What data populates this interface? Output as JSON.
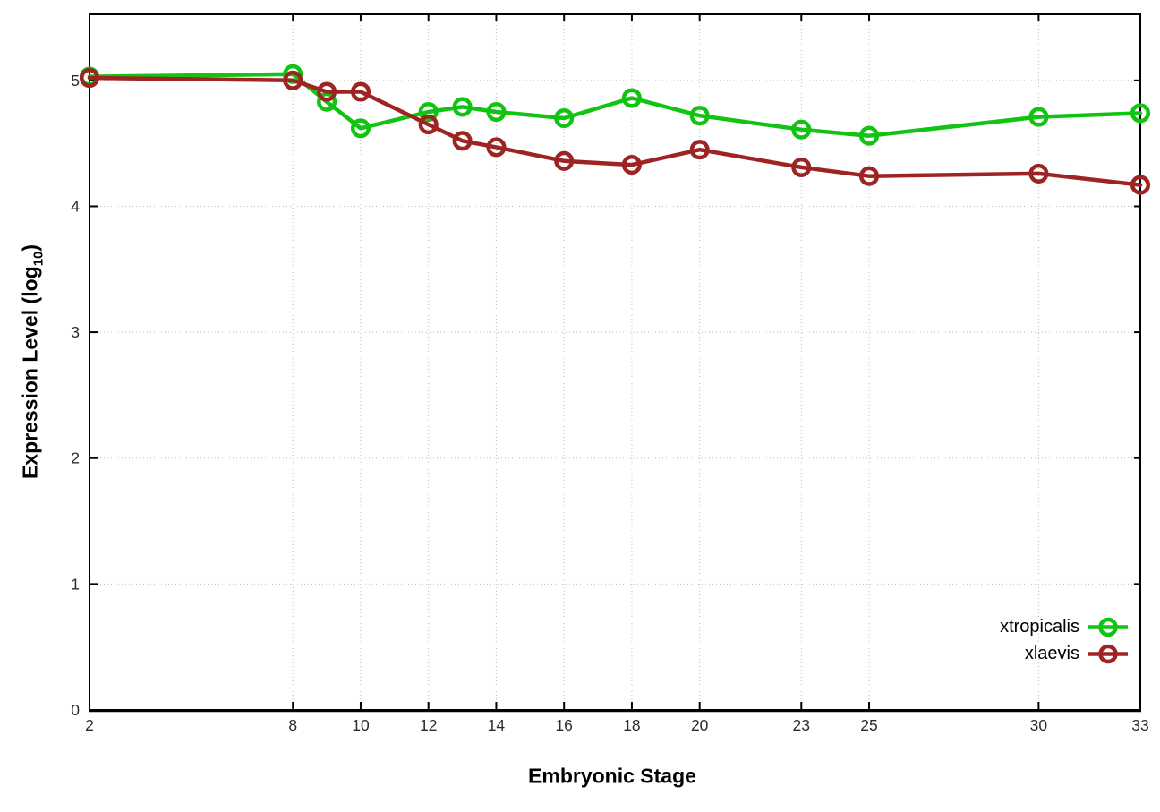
{
  "chart_data": {
    "type": "line",
    "title": "",
    "xlabel": "Embryonic Stage",
    "ylabel": {
      "pre": "Expression Level (log",
      "sub": "10",
      "post": ")"
    },
    "x_ticks": [
      2,
      8,
      10,
      12,
      14,
      16,
      18,
      20,
      23,
      25,
      30,
      33
    ],
    "y_ticks": [
      0,
      1,
      2,
      3,
      4,
      5
    ],
    "xlim": [
      2,
      33
    ],
    "ylim": [
      0,
      5.525
    ],
    "grid": true,
    "legend_position": "bottom-right",
    "x": [
      2,
      8,
      9,
      10,
      12,
      13,
      14,
      16,
      18,
      20,
      23,
      25,
      30,
      33
    ],
    "series": [
      {
        "name": "xtropicalis",
        "color": "#12c412",
        "values": [
          5.03,
          5.05,
          4.83,
          4.62,
          4.75,
          4.79,
          4.75,
          4.7,
          4.86,
          4.72,
          4.61,
          4.56,
          4.71,
          4.74
        ]
      },
      {
        "name": "xlaevis",
        "color": "#9e2323",
        "values": [
          5.02,
          5.0,
          4.91,
          4.91,
          4.65,
          4.52,
          4.47,
          4.36,
          4.33,
          4.45,
          4.31,
          4.24,
          4.26,
          4.17
        ]
      }
    ],
    "colors": {
      "border": "#000000",
      "grid": "#bdbdbd",
      "tick_text": "#2b2b2b"
    }
  }
}
